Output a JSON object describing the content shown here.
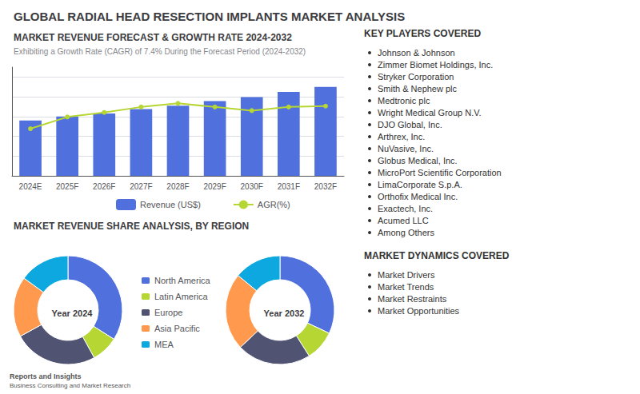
{
  "title": "GLOBAL RADIAL HEAD RESECTION IMPLANTS MARKET ANALYSIS",
  "chart_data": [
    {
      "type": "bar",
      "title": "MARKET REVENUE FORECAST & GROWTH RATE 2024-2032",
      "subtitle": "Exhibiting a Growth Rate (CAGR) of 7.4% During the Forecast Period (2024-2032)",
      "categories": [
        "2024E",
        "2025F",
        "2026F",
        "2027F",
        "2028F",
        "2029F",
        "2030F",
        "2031F",
        "2032F"
      ],
      "series": [
        {
          "name": "Revenue (US$)",
          "type": "bar",
          "values": [
            2.8,
            3.0,
            3.15,
            3.38,
            3.55,
            3.78,
            3.98,
            4.25,
            4.5
          ]
        },
        {
          "name": "AGR(%)",
          "type": "line",
          "marker": "circle",
          "axis": "y2",
          "values": [
            5.2,
            6.5,
            7.0,
            7.6,
            8.0,
            7.6,
            7.2,
            7.6,
            7.7
          ]
        }
      ],
      "ylim": [
        0,
        5.5
      ],
      "yticks": [
        0,
        1,
        2,
        3,
        4,
        5
      ],
      "y2lim": [
        0,
        12
      ],
      "y2ticks": [
        0,
        2,
        4,
        6,
        8,
        10,
        12
      ],
      "grid": true,
      "tick_labels": "x",
      "legend": "bottom"
    },
    {
      "type": "pie",
      "title": "MARKET REVENUE SHARE ANALYSIS, BY REGION",
      "categories": [
        "North America",
        "Latin America",
        "Europe",
        "Asia Pacific",
        "MEA"
      ],
      "series": [
        {
          "name": "Year 2024",
          "values": [
            34,
            8,
            25,
            18,
            15
          ]
        },
        {
          "name": "Year 2032",
          "values": [
            32,
            9,
            22,
            23,
            14
          ]
        }
      ],
      "legend": "center"
    }
  ],
  "annotations": [
    {
      "title": "KEY PLAYERS COVERED",
      "text": [
        "Johnson & Johnson",
        "Zimmer Biomet Holdings, Inc.",
        "Stryker Corporation",
        "Smith & Nephew plc",
        "Medtronic plc",
        "Wright Medical Group N.V.",
        "DJO Global, Inc.",
        "Arthrex, Inc.",
        "NuVasive, Inc.",
        "Globus Medical, Inc.",
        "MicroPort Scientific Corporation",
        "LimaCorporate S.p.A.",
        "Orthofix Medical Inc.",
        "Exactech, Inc.",
        "Acumed LLC",
        "Among Others"
      ]
    },
    {
      "title": "MARKET DYNAMICS COVERED",
      "text": [
        "Market Drivers",
        "Market Trends",
        "Market Restraints",
        "Market Opportunities"
      ]
    },
    {
      "text": [
        "Reports and Insights",
        "Business Consulting and Market Research"
      ]
    }
  ]
}
